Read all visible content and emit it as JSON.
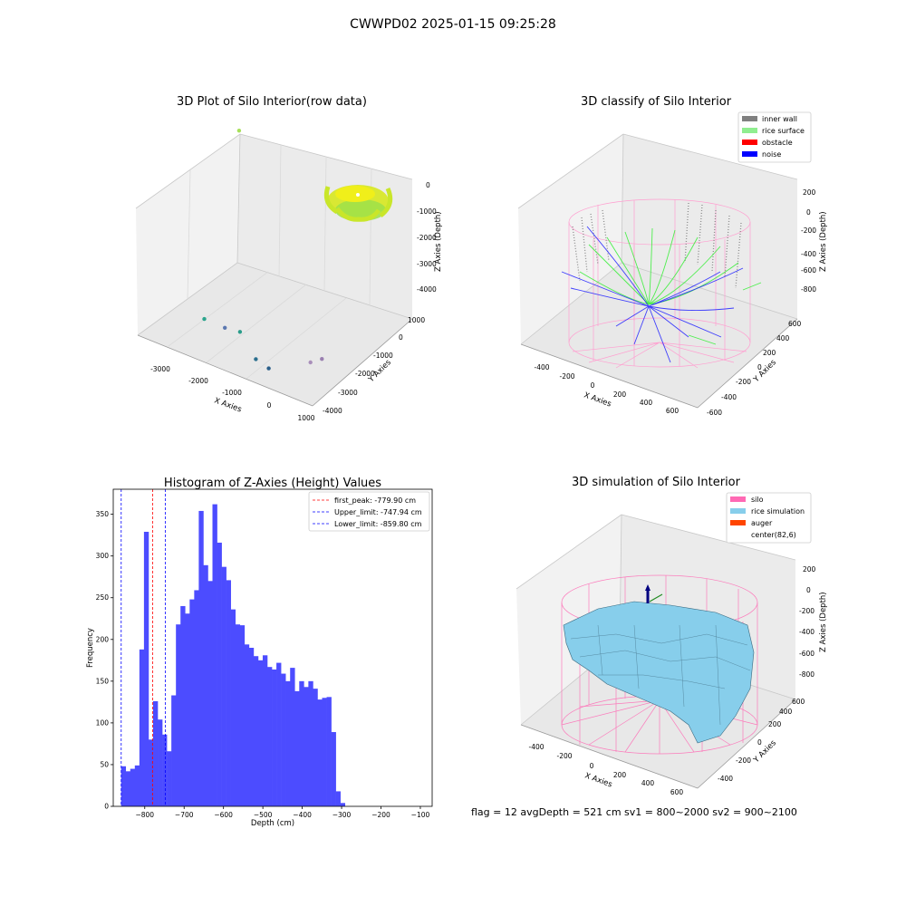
{
  "figure": {
    "suptitle": "CWWPD02 2025-01-15 09:25:28",
    "status_line": "flag = 12   avgDepth = 521 cm  sv1 = 800~2000  sv2 = 900~2100"
  },
  "chart_data": [
    {
      "type": "scatter",
      "title": "3D Plot of Silo Interior(row data)",
      "xlabel": "X Axies",
      "ylabel": "Y Axies",
      "zlabel": "Z Axies (Depth)",
      "x_ticks": [
        "-3000",
        "-2000",
        "-1000",
        "0",
        "1000"
      ],
      "y_ticks": [
        "-4000",
        "-3000",
        "-2000",
        "-1000",
        "0",
        "1000"
      ],
      "z_ticks": [
        "-4000",
        "-3000",
        "-2000",
        "-1000",
        "0"
      ],
      "outlier_points": [
        {
          "x": -3600,
          "y": 900,
          "z": -500,
          "color": "#a7e05a"
        },
        {
          "x": -2500,
          "y": -2900,
          "z": -4000,
          "color": "#2ca58d"
        },
        {
          "x": -2000,
          "y": -2800,
          "z": -4100,
          "color": "#5b78b0"
        },
        {
          "x": -1700,
          "y": -2600,
          "z": -4200,
          "color": "#2a9c8a"
        },
        {
          "x": -900,
          "y": -3300,
          "z": -4300,
          "color": "#2b6f8e"
        },
        {
          "x": -500,
          "y": -3400,
          "z": -4350,
          "color": "#2b5f8a"
        },
        {
          "x": 300,
          "y": -2800,
          "z": -4100,
          "color": "#a98fba"
        },
        {
          "x": 500,
          "y": -2600,
          "z": -4000,
          "color": "#9a7fb0"
        }
      ],
      "cluster_description": "main silo scan cluster near X 0..600, Y 400..900, Z -1000..0"
    },
    {
      "type": "scatter",
      "title": "3D classify of Silo Interior",
      "xlabel": "X Axies",
      "ylabel": "Y Axies",
      "zlabel": "Z Axies (Depth)",
      "x_ticks": [
        "-400",
        "-200",
        "0",
        "200",
        "400",
        "600"
      ],
      "y_ticks": [
        "-600",
        "-400",
        "-200",
        "0",
        "200",
        "400",
        "600"
      ],
      "z_ticks": [
        "-800",
        "-600",
        "-400",
        "-200",
        "0",
        "200"
      ],
      "legend": [
        {
          "label": "inner wall",
          "color": "#808080"
        },
        {
          "label": "rice surface",
          "color": "#90ee90"
        },
        {
          "label": "obstacle",
          "color": "#ff0000"
        },
        {
          "label": "noise",
          "color": "#0000ff"
        }
      ],
      "legend_position": "top-right"
    },
    {
      "type": "bar",
      "title": "Histogram of Z-Axies (Height) Values",
      "xlabel": "Depth (cm)",
      "ylabel": "Frequency",
      "xlim": [
        -880,
        -70
      ],
      "ylim": [
        0,
        380
      ],
      "x_ticks": [
        -800,
        -700,
        -600,
        -500,
        -400,
        -300,
        -200,
        -100
      ],
      "y_ticks": [
        0,
        50,
        100,
        150,
        200,
        250,
        300,
        350
      ],
      "bin_start": -860,
      "bin_width": 11.6,
      "counts": [
        48,
        42,
        45,
        49,
        188,
        329,
        80,
        126,
        104,
        86,
        66,
        133,
        218,
        240,
        231,
        248,
        259,
        354,
        289,
        270,
        362,
        316,
        287,
        271,
        236,
        218,
        217,
        194,
        190,
        180,
        175,
        181,
        167,
        164,
        172,
        159,
        150,
        166,
        138,
        150,
        143,
        150,
        141,
        128,
        130,
        131,
        89,
        18,
        4
      ],
      "bar_color": "#4c4cff",
      "lines": [
        {
          "label": "first_peak: -779.90 cm",
          "value": -779.9,
          "color": "#ff0000"
        },
        {
          "label": "Upper_limit: -747.94 cm",
          "value": -747.94,
          "color": "#0000ff"
        },
        {
          "label": "Lower_limit: -859.80 cm",
          "value": -859.8,
          "color": "#0000ff"
        }
      ],
      "legend_position": "top-right"
    },
    {
      "type": "area",
      "title": "3D simulation of Silo Interior",
      "xlabel": "X Axies",
      "ylabel": "Y Axies",
      "zlabel": "Z Axies (Depth)",
      "x_ticks": [
        "-400",
        "-200",
        "0",
        "200",
        "400",
        "600"
      ],
      "y_ticks": [
        "-400",
        "-200",
        "0",
        "200",
        "400",
        "600"
      ],
      "z_ticks": [
        "-800",
        "-600",
        "-400",
        "-200",
        "0",
        "200"
      ],
      "legend": [
        {
          "label": "silo",
          "color": "#ff69b4"
        },
        {
          "label": "rice simulation",
          "color": "#87ceeb"
        },
        {
          "label": "auger",
          "color": "#ff4500"
        },
        {
          "label": "center(82,6)",
          "color": ""
        }
      ],
      "legend_position": "top-right"
    }
  ]
}
